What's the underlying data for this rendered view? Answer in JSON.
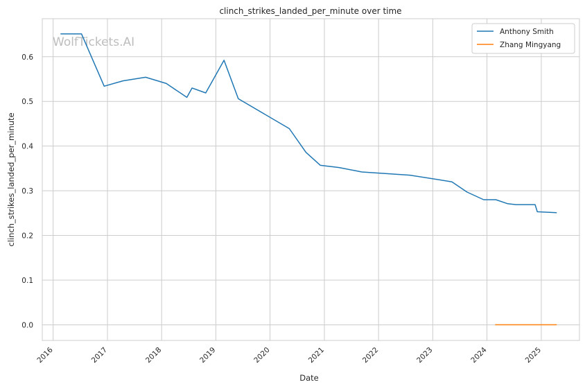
{
  "chart_data": {
    "type": "line",
    "title": "clinch_strikes_landed_per_minute over time",
    "xlabel": "Date",
    "ylabel": "clinch_strikes_landed_per_minute",
    "watermark": "WolfTickets.AI",
    "x_tick_labels": [
      "2016",
      "2017",
      "2018",
      "2019",
      "2020",
      "2021",
      "2022",
      "2023",
      "2024",
      "2025"
    ],
    "y_tick_labels": [
      "0.0",
      "0.1",
      "0.2",
      "0.3",
      "0.4",
      "0.5",
      "0.6"
    ],
    "xlim": [
      "2015-10-20",
      "2025-09-15"
    ],
    "ylim": [
      -0.035,
      0.685
    ],
    "grid": true,
    "legend_position": "top-right",
    "series": [
      {
        "name": "Anthony Smith",
        "color": "#1f77b4",
        "points": [
          [
            "2016-02-20",
            0.651
          ],
          [
            "2016-07-10",
            0.651
          ],
          [
            "2016-12-10",
            0.534
          ],
          [
            "2017-04-15",
            0.546
          ],
          [
            "2017-09-15",
            0.554
          ],
          [
            "2018-02-01",
            0.54
          ],
          [
            "2018-06-20",
            0.509
          ],
          [
            "2018-07-25",
            0.53
          ],
          [
            "2018-10-25",
            0.519
          ],
          [
            "2019-02-25",
            0.592
          ],
          [
            "2019-06-01",
            0.506
          ],
          [
            "2020-05-10",
            0.439
          ],
          [
            "2020-08-30",
            0.386
          ],
          [
            "2020-12-05",
            0.357
          ],
          [
            "2021-04-10",
            0.352
          ],
          [
            "2021-09-10",
            0.342
          ],
          [
            "2022-07-30",
            0.335
          ],
          [
            "2023-05-10",
            0.32
          ],
          [
            "2023-08-20",
            0.297
          ],
          [
            "2023-12-10",
            0.28
          ],
          [
            "2024-03-01",
            0.28
          ],
          [
            "2024-05-20",
            0.271
          ],
          [
            "2024-07-15",
            0.269
          ],
          [
            "2024-11-20",
            0.269
          ],
          [
            "2024-12-05",
            0.253
          ],
          [
            "2025-04-15",
            0.251
          ]
        ]
      },
      {
        "name": "Zhang Mingyang",
        "color": "#ff7f0e",
        "points": [
          [
            "2024-02-25",
            0.0
          ],
          [
            "2025-04-15",
            0.0
          ]
        ]
      }
    ]
  }
}
